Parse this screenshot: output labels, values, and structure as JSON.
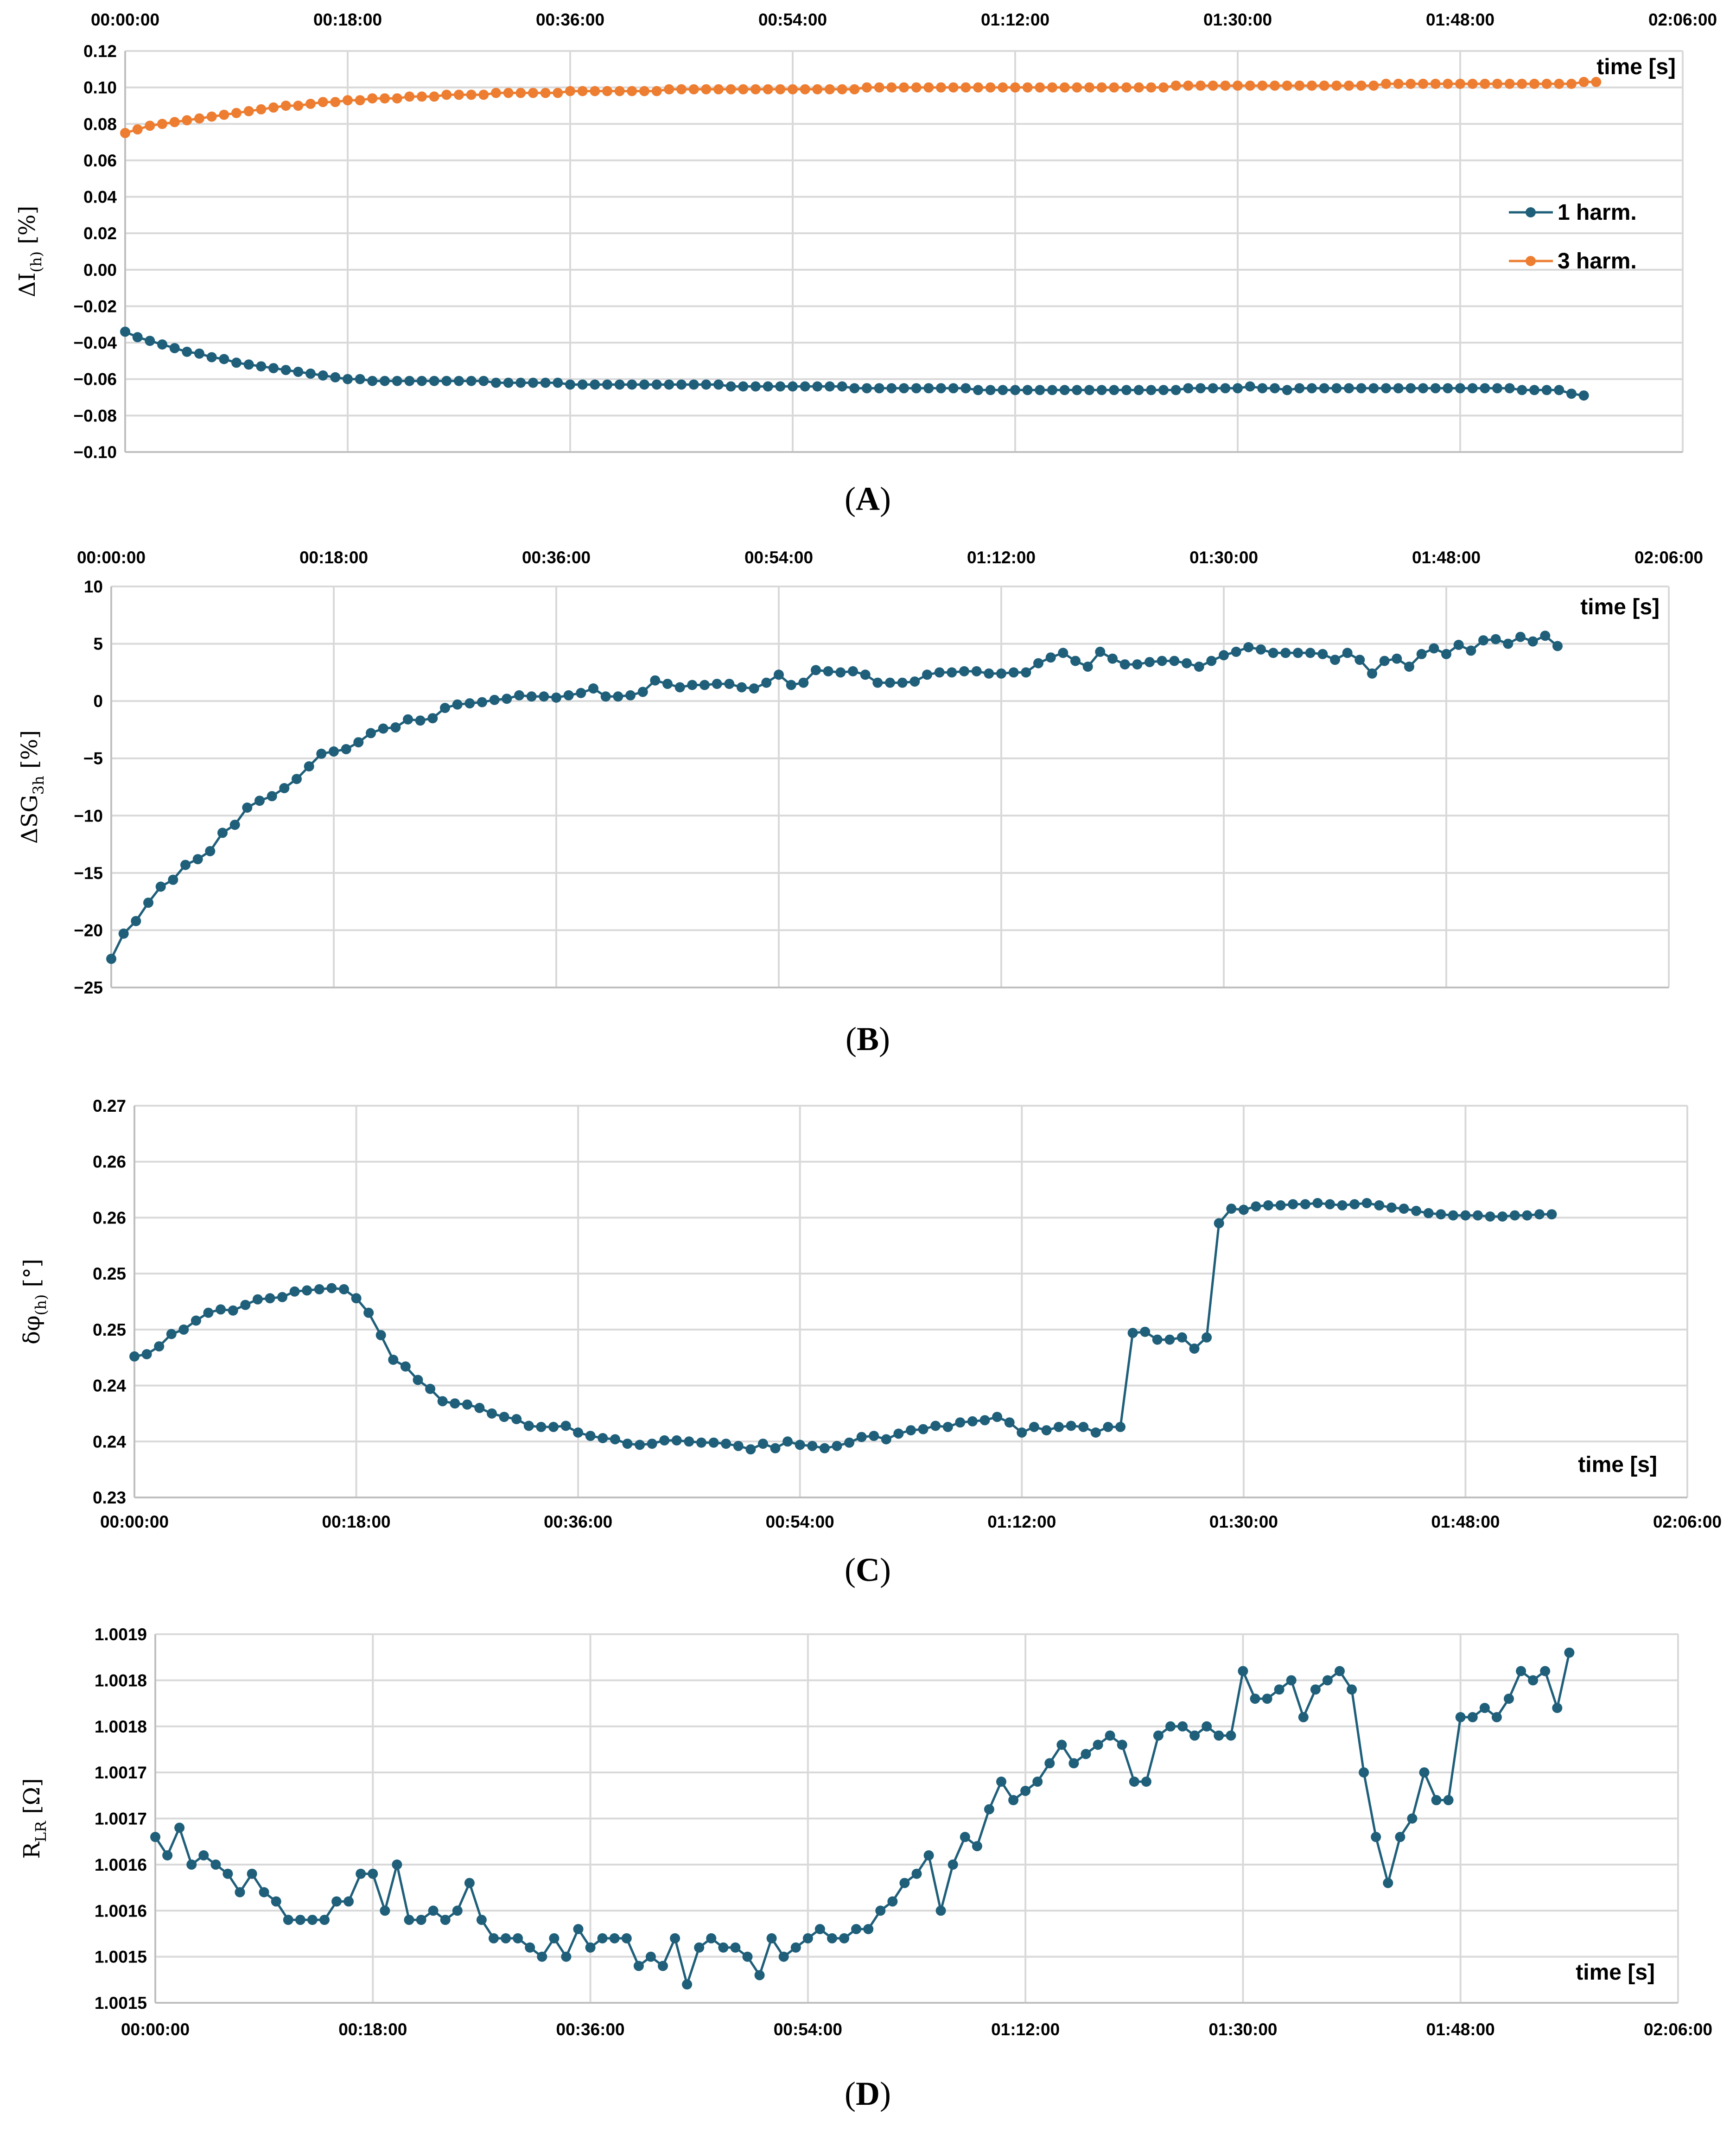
{
  "chart_data": [
    {
      "panel": "A",
      "type": "line",
      "ylabel": {
        "main": "ΔI",
        "sub": "(h)",
        "unit": " [%]"
      },
      "time_label": "time [s]",
      "x_ticks": [
        "00:00:00",
        "00:18:00",
        "00:36:00",
        "00:54:00",
        "01:12:00",
        "01:30:00",
        "01:48:00",
        "02:06:00"
      ],
      "x_tick_position": "top",
      "xlim": [
        0,
        126
      ],
      "y_ticks": [
        "0.12",
        "0.10",
        "0.08",
        "0.06",
        "0.04",
        "0.02",
        "0.00",
        "−0.02",
        "−0.04",
        "−0.06",
        "−0.08",
        "−0.10"
      ],
      "ylim": [
        -0.1,
        0.12
      ],
      "legend": "right",
      "series": [
        {
          "name": "1 harm.",
          "color": "#1f5f7a",
          "x_start": 0,
          "x_step": 1,
          "values": [
            -0.034,
            -0.037,
            -0.039,
            -0.041,
            -0.043,
            -0.045,
            -0.046,
            -0.048,
            -0.049,
            -0.051,
            -0.052,
            -0.053,
            -0.054,
            -0.055,
            -0.056,
            -0.057,
            -0.058,
            -0.059,
            -0.06,
            -0.06,
            -0.061,
            -0.061,
            -0.061,
            -0.061,
            -0.061,
            -0.061,
            -0.061,
            -0.061,
            -0.061,
            -0.061,
            -0.062,
            -0.062,
            -0.062,
            -0.062,
            -0.062,
            -0.062,
            -0.063,
            -0.063,
            -0.063,
            -0.063,
            -0.063,
            -0.063,
            -0.063,
            -0.063,
            -0.063,
            -0.063,
            -0.063,
            -0.063,
            -0.063,
            -0.064,
            -0.064,
            -0.064,
            -0.064,
            -0.064,
            -0.064,
            -0.064,
            -0.064,
            -0.064,
            -0.064,
            -0.065,
            -0.065,
            -0.065,
            -0.065,
            -0.065,
            -0.065,
            -0.065,
            -0.065,
            -0.065,
            -0.065,
            -0.066,
            -0.066,
            -0.066,
            -0.066,
            -0.066,
            -0.066,
            -0.066,
            -0.066,
            -0.066,
            -0.066,
            -0.066,
            -0.066,
            -0.066,
            -0.066,
            -0.066,
            -0.066,
            -0.066,
            -0.065,
            -0.065,
            -0.065,
            -0.065,
            -0.065,
            -0.064,
            -0.065,
            -0.065,
            -0.066,
            -0.065,
            -0.065,
            -0.065,
            -0.065,
            -0.065,
            -0.065,
            -0.065,
            -0.065,
            -0.065,
            -0.065,
            -0.065,
            -0.065,
            -0.065,
            -0.065,
            -0.065,
            -0.065,
            -0.065,
            -0.065,
            -0.066,
            -0.066,
            -0.066,
            -0.066,
            -0.068,
            -0.069
          ]
        },
        {
          "name": "3 harm.",
          "color": "#ed7d31",
          "x_start": 0,
          "x_step": 1,
          "values": [
            0.075,
            0.077,
            0.079,
            0.08,
            0.081,
            0.082,
            0.083,
            0.084,
            0.085,
            0.086,
            0.087,
            0.088,
            0.089,
            0.09,
            0.09,
            0.091,
            0.092,
            0.092,
            0.093,
            0.093,
            0.094,
            0.094,
            0.094,
            0.095,
            0.095,
            0.095,
            0.096,
            0.096,
            0.096,
            0.096,
            0.097,
            0.097,
            0.097,
            0.097,
            0.097,
            0.097,
            0.098,
            0.098,
            0.098,
            0.098,
            0.098,
            0.098,
            0.098,
            0.098,
            0.099,
            0.099,
            0.099,
            0.099,
            0.099,
            0.099,
            0.099,
            0.099,
            0.099,
            0.099,
            0.099,
            0.099,
            0.099,
            0.099,
            0.099,
            0.099,
            0.1,
            0.1,
            0.1,
            0.1,
            0.1,
            0.1,
            0.1,
            0.1,
            0.1,
            0.1,
            0.1,
            0.1,
            0.1,
            0.1,
            0.1,
            0.1,
            0.1,
            0.1,
            0.1,
            0.1,
            0.1,
            0.1,
            0.1,
            0.1,
            0.1,
            0.101,
            0.101,
            0.101,
            0.101,
            0.101,
            0.101,
            0.101,
            0.101,
            0.101,
            0.101,
            0.101,
            0.101,
            0.101,
            0.101,
            0.101,
            0.101,
            0.101,
            0.102,
            0.102,
            0.102,
            0.102,
            0.102,
            0.102,
            0.102,
            0.102,
            0.102,
            0.102,
            0.102,
            0.102,
            0.102,
            0.102,
            0.102,
            0.102,
            0.103,
            0.103
          ]
        }
      ]
    },
    {
      "panel": "B",
      "type": "line",
      "ylabel": {
        "main": "ΔSG",
        "sub": "3h",
        "unit": " [%]"
      },
      "time_label": "time [s]",
      "x_ticks": [
        "00:00:00",
        "00:18:00",
        "00:36:00",
        "00:54:00",
        "01:12:00",
        "01:30:00",
        "01:48:00",
        "02:06:00"
      ],
      "x_tick_position": "top",
      "xlim": [
        0,
        126
      ],
      "y_ticks": [
        "10",
        "5",
        "0",
        "−5",
        "−10",
        "−15",
        "−20",
        "−25"
      ],
      "ylim": [
        -25,
        10
      ],
      "series": [
        {
          "color": "#1f5f7a",
          "x_start": 0,
          "x_step": 1,
          "values": [
            -22.5,
            -20.3,
            -19.2,
            -17.6,
            -16.2,
            -15.6,
            -14.3,
            -13.8,
            -13.1,
            -11.5,
            -10.8,
            -9.3,
            -8.7,
            -8.3,
            -7.6,
            -6.8,
            -5.7,
            -4.6,
            -4.4,
            -4.2,
            -3.6,
            -2.8,
            -2.4,
            -2.3,
            -1.6,
            -1.7,
            -1.5,
            -0.6,
            -0.3,
            -0.2,
            -0.1,
            0.1,
            0.2,
            0.5,
            0.4,
            0.4,
            0.3,
            0.5,
            0.7,
            1.1,
            0.4,
            0.4,
            0.5,
            0.8,
            1.8,
            1.5,
            1.2,
            1.4,
            1.4,
            1.5,
            1.5,
            1.2,
            1.1,
            1.6,
            2.3,
            1.4,
            1.6,
            2.7,
            2.6,
            2.5,
            2.6,
            2.3,
            1.6,
            1.6,
            1.6,
            1.7,
            2.3,
            2.5,
            2.5,
            2.6,
            2.6,
            2.4,
            2.4,
            2.5,
            2.5,
            3.3,
            3.8,
            4.2,
            3.5,
            3.0,
            4.3,
            3.7,
            3.2,
            3.2,
            3.4,
            3.5,
            3.5,
            3.3,
            3.0,
            3.5,
            4.0,
            4.3,
            4.7,
            4.5,
            4.2,
            4.2,
            4.2,
            4.2,
            4.1,
            3.6,
            4.2,
            3.6,
            2.4,
            3.5,
            3.7,
            3.0,
            4.1,
            4.6,
            4.1,
            4.9,
            4.4,
            5.3,
            5.4,
            5.0,
            5.6,
            5.2,
            5.7,
            4.8
          ]
        }
      ]
    },
    {
      "panel": "C",
      "type": "line",
      "ylabel": {
        "main": "δφ",
        "sub": "(h)",
        "unit": " [°]"
      },
      "time_label": "time [s]",
      "x_ticks": [
        "00:00:00",
        "00:18:00",
        "00:36:00",
        "00:54:00",
        "01:12:00",
        "01:30:00",
        "01:48:00",
        "02:06:00"
      ],
      "x_tick_position": "bottom",
      "xlim": [
        0,
        126
      ],
      "y_ticks": [
        "0.27",
        "0.26",
        "0.26",
        "0.25",
        "0.25",
        "0.24",
        "0.24",
        "0.23"
      ],
      "ylim": [
        0.23,
        0.265
      ],
      "series": [
        {
          "color": "#1f5f7a",
          "x_start": 0,
          "x_step": 1,
          "values": [
            0.2426,
            0.2428,
            0.2435,
            0.2446,
            0.245,
            0.2458,
            0.2465,
            0.2468,
            0.2467,
            0.2472,
            0.2477,
            0.2478,
            0.2479,
            0.2484,
            0.2485,
            0.2486,
            0.2487,
            0.2486,
            0.2478,
            0.2465,
            0.2445,
            0.2423,
            0.2417,
            0.2405,
            0.2397,
            0.2386,
            0.2384,
            0.2383,
            0.238,
            0.2375,
            0.2372,
            0.237,
            0.2364,
            0.2363,
            0.2363,
            0.2364,
            0.2358,
            0.2355,
            0.2353,
            0.2352,
            0.2348,
            0.2347,
            0.2348,
            0.2351,
            0.2351,
            0.235,
            0.2349,
            0.2349,
            0.2348,
            0.2346,
            0.2343,
            0.2348,
            0.2344,
            0.235,
            0.2347,
            0.2346,
            0.2344,
            0.2346,
            0.2349,
            0.2354,
            0.2355,
            0.2352,
            0.2357,
            0.236,
            0.2361,
            0.2364,
            0.2363,
            0.2367,
            0.2368,
            0.2369,
            0.2372,
            0.2367,
            0.2358,
            0.2363,
            0.236,
            0.2363,
            0.2364,
            0.2363,
            0.2358,
            0.2363,
            0.2363,
            0.2447,
            0.2448,
            0.2441,
            0.2441,
            0.2443,
            0.2433,
            0.2443,
            0.2545,
            0.2558,
            0.2557,
            0.256,
            0.2561,
            0.2561,
            0.2562,
            0.2562,
            0.2563,
            0.2562,
            0.2561,
            0.2562,
            0.2563,
            0.2561,
            0.2559,
            0.2558,
            0.2556,
            0.2554,
            0.2553,
            0.2552,
            0.2552,
            0.2552,
            0.2551,
            0.2551,
            0.2552,
            0.2552,
            0.2553,
            0.2553
          ]
        }
      ]
    },
    {
      "panel": "D",
      "type": "line",
      "ylabel": {
        "main": "R",
        "sub": "LR",
        "unit": " [Ω]"
      },
      "time_label": "time [s]",
      "x_ticks": [
        "00:00:00",
        "00:18:00",
        "00:36:00",
        "00:54:00",
        "01:12:00",
        "01:30:00",
        "01:48:00",
        "02:06:00"
      ],
      "x_tick_position": "bottom",
      "xlim": [
        0,
        126
      ],
      "y_ticks": [
        "1.0019",
        "1.0018",
        "1.0018",
        "1.0017",
        "1.0017",
        "1.0016",
        "1.0016",
        "1.0015",
        "1.0015"
      ],
      "ylim": [
        1.0015,
        1.0019
      ],
      "series": [
        {
          "color": "#1f5f7a",
          "x_start": 0,
          "x_step": 1,
          "values": [
            1.00168,
            1.00166,
            1.00169,
            1.00165,
            1.00166,
            1.00165,
            1.00164,
            1.00162,
            1.00164,
            1.00162,
            1.00161,
            1.00159,
            1.00159,
            1.00159,
            1.00159,
            1.00161,
            1.00161,
            1.00164,
            1.00164,
            1.0016,
            1.00165,
            1.00159,
            1.00159,
            1.0016,
            1.00159,
            1.0016,
            1.00163,
            1.00159,
            1.00157,
            1.00157,
            1.00157,
            1.00156,
            1.00155,
            1.00157,
            1.00155,
            1.00158,
            1.00156,
            1.00157,
            1.00157,
            1.00157,
            1.00154,
            1.00155,
            1.00154,
            1.00157,
            1.00152,
            1.00156,
            1.00157,
            1.00156,
            1.00156,
            1.00155,
            1.00153,
            1.00157,
            1.00155,
            1.00156,
            1.00157,
            1.00158,
            1.00157,
            1.00157,
            1.00158,
            1.00158,
            1.0016,
            1.00161,
            1.00163,
            1.00164,
            1.00166,
            1.0016,
            1.00165,
            1.00168,
            1.00167,
            1.00171,
            1.00174,
            1.00172,
            1.00173,
            1.00174,
            1.00176,
            1.00178,
            1.00176,
            1.00177,
            1.00178,
            1.00179,
            1.00178,
            1.00174,
            1.00174,
            1.00179,
            1.0018,
            1.0018,
            1.00179,
            1.0018,
            1.00179,
            1.00179,
            1.00186,
            1.00183,
            1.00183,
            1.00184,
            1.00185,
            1.00181,
            1.00184,
            1.00185,
            1.00186,
            1.00184,
            1.00175,
            1.00168,
            1.00163,
            1.00168,
            1.0017,
            1.00175,
            1.00172,
            1.00172,
            1.00181,
            1.00181,
            1.00182,
            1.00181,
            1.00183,
            1.00186,
            1.00185,
            1.00186,
            1.00182,
            1.00188
          ]
        }
      ]
    }
  ],
  "panel_labels": [
    "A",
    "B",
    "C",
    "D"
  ]
}
